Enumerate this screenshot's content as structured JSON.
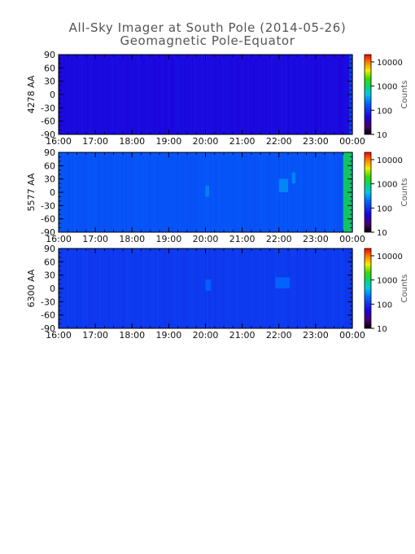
{
  "figure": {
    "title": "All-Sky Imager at South Pole (2014-05-26)",
    "subtitle": "Geomagnetic Pole-Equator"
  },
  "colors": {
    "background": "#ffffff",
    "field_blue": "#2a8ff2",
    "dawn_green": "#32c84a",
    "axis": "#000000"
  },
  "chart_data": [
    {
      "type": "heatmap",
      "ylabel": "4278 AA",
      "xlabel": "",
      "x_ticks": [
        "16:00",
        "17:00",
        "18:00",
        "19:00",
        "20:00",
        "21:00",
        "22:00",
        "23:00",
        "00:00"
      ],
      "x_range_hours": [
        16,
        24
      ],
      "y_ticks": [
        "90",
        "60",
        "30",
        "0",
        "-30",
        "-60",
        "-90"
      ],
      "ylim": [
        -90,
        90
      ],
      "colorbar": {
        "label": "Counts",
        "ticks": [
          "10000",
          "1000",
          "100",
          "10"
        ],
        "scale": "log",
        "range": [
          10,
          20000
        ]
      },
      "background_counts": 60,
      "features": [
        {
          "x_start": 23.92,
          "x_end": 24.0,
          "y_range": [
            -90,
            90
          ],
          "counts": 140
        }
      ]
    },
    {
      "type": "heatmap",
      "ylabel": "5577 AA",
      "xlabel": "",
      "x_ticks": [
        "16:00",
        "17:00",
        "18:00",
        "19:00",
        "20:00",
        "21:00",
        "22:00",
        "23:00",
        "00:00"
      ],
      "x_range_hours": [
        16,
        24
      ],
      "y_ticks": [
        "90",
        "60",
        "30",
        "0",
        "-30",
        "-60",
        "-90"
      ],
      "ylim": [
        -90,
        90
      ],
      "colorbar": {
        "label": "Counts",
        "ticks": [
          "10000",
          "1000",
          "100",
          "10"
        ],
        "scale": "log",
        "range": [
          10,
          20000
        ]
      },
      "background_counts": 150,
      "features": [
        {
          "x_start": 23.75,
          "x_end": 24.0,
          "y_range": [
            -90,
            90
          ],
          "counts": 1200
        },
        {
          "x_start": 20.0,
          "x_end": 20.1,
          "y_range": [
            -10,
            15
          ],
          "counts": 260
        },
        {
          "x_start": 22.0,
          "x_end": 22.25,
          "y_range": [
            0,
            30
          ],
          "counts": 280
        },
        {
          "x_start": 22.35,
          "x_end": 22.45,
          "y_range": [
            20,
            45
          ],
          "counts": 270
        }
      ]
    },
    {
      "type": "heatmap",
      "ylabel": "6300 AA",
      "xlabel": "",
      "x_ticks": [
        "16:00",
        "17:00",
        "18:00",
        "19:00",
        "20:00",
        "21:00",
        "22:00",
        "23:00",
        "00:00"
      ],
      "x_range_hours": [
        16,
        24
      ],
      "y_ticks": [
        "90",
        "60",
        "30",
        "0",
        "-30",
        "-60",
        "-90"
      ],
      "ylim": [
        -90,
        90
      ],
      "colorbar": {
        "label": "Counts",
        "ticks": [
          "10000",
          "1000",
          "100",
          "10"
        ],
        "scale": "log",
        "range": [
          10,
          20000
        ]
      },
      "background_counts": 110,
      "features": [
        {
          "x_start": 20.0,
          "x_end": 20.15,
          "y_range": [
            -5,
            20
          ],
          "counts": 190
        },
        {
          "x_start": 21.9,
          "x_end": 22.3,
          "y_range": [
            0,
            25
          ],
          "counts": 200
        }
      ]
    }
  ]
}
